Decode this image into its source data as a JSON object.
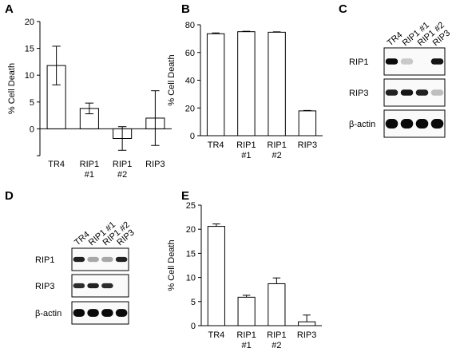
{
  "figure": {
    "panels": {
      "A": "A",
      "B": "B",
      "C": "C",
      "D": "D",
      "E": "E"
    }
  },
  "chart_data": [
    {
      "panel": "A",
      "type": "bar",
      "categories": [
        [
          "TR4"
        ],
        [
          "RIP1",
          "#1"
        ],
        [
          "RIP1",
          "#2"
        ],
        [
          "RIP3"
        ]
      ],
      "values": [
        11.8,
        3.8,
        -1.8,
        2.0
      ],
      "errors": [
        3.6,
        1.0,
        2.2,
        5.1
      ],
      "ylabel": "% Cell Death",
      "ylim": [
        -5,
        20
      ],
      "yticks": [
        0,
        5,
        10,
        15,
        20
      ],
      "grid": false
    },
    {
      "panel": "B",
      "type": "bar",
      "categories": [
        [
          "TR4"
        ],
        [
          "RIP1",
          "#1"
        ],
        [
          "RIP1",
          "#2"
        ],
        [
          "RIP3"
        ]
      ],
      "values": [
        73.5,
        75.0,
        74.6,
        17.9
      ],
      "errors": [
        0.6,
        0.3,
        0.3,
        0.3
      ],
      "ylabel": "% Cell Death",
      "ylim": [
        0,
        80
      ],
      "yticks": [
        0,
        20,
        40,
        60,
        80
      ],
      "grid": false
    },
    {
      "panel": "E",
      "type": "bar",
      "categories": [
        [
          "TR4"
        ],
        [
          "RIP1",
          "#1"
        ],
        [
          "RIP1",
          "#2"
        ],
        [
          "RIP3"
        ]
      ],
      "values": [
        20.6,
        5.9,
        8.7,
        0.8
      ],
      "errors": [
        0.5,
        0.4,
        1.2,
        1.4
      ],
      "ylabel": "% Cell Death",
      "ylim": [
        0,
        25
      ],
      "yticks": [
        0,
        5,
        10,
        15,
        20,
        25
      ],
      "grid": false
    }
  ],
  "blots": [
    {
      "panel": "C",
      "lanes": [
        "TR4",
        "RIP1 #1",
        "RIP1 #2",
        "RIP3"
      ],
      "rows": [
        {
          "label": "RIP1",
          "intensity": [
            1.0,
            0.15,
            0.0,
            0.95
          ]
        },
        {
          "label": "RIP3",
          "intensity": [
            0.9,
            0.95,
            0.9,
            0.2
          ]
        },
        {
          "label": "β-actin",
          "intensity": [
            1.0,
            1.0,
            1.0,
            1.0
          ]
        }
      ]
    },
    {
      "panel": "D",
      "lanes": [
        "TR4",
        "RIP1 #1",
        "RIP1 #2",
        "RIP3"
      ],
      "rows": [
        {
          "label": "RIP1",
          "intensity": [
            0.9,
            0.3,
            0.3,
            0.9
          ]
        },
        {
          "label": "RIP3",
          "intensity": [
            0.85,
            0.9,
            0.85,
            0.0
          ]
        },
        {
          "label": "β-actin",
          "intensity": [
            1.0,
            1.0,
            1.0,
            1.0
          ]
        }
      ]
    }
  ]
}
